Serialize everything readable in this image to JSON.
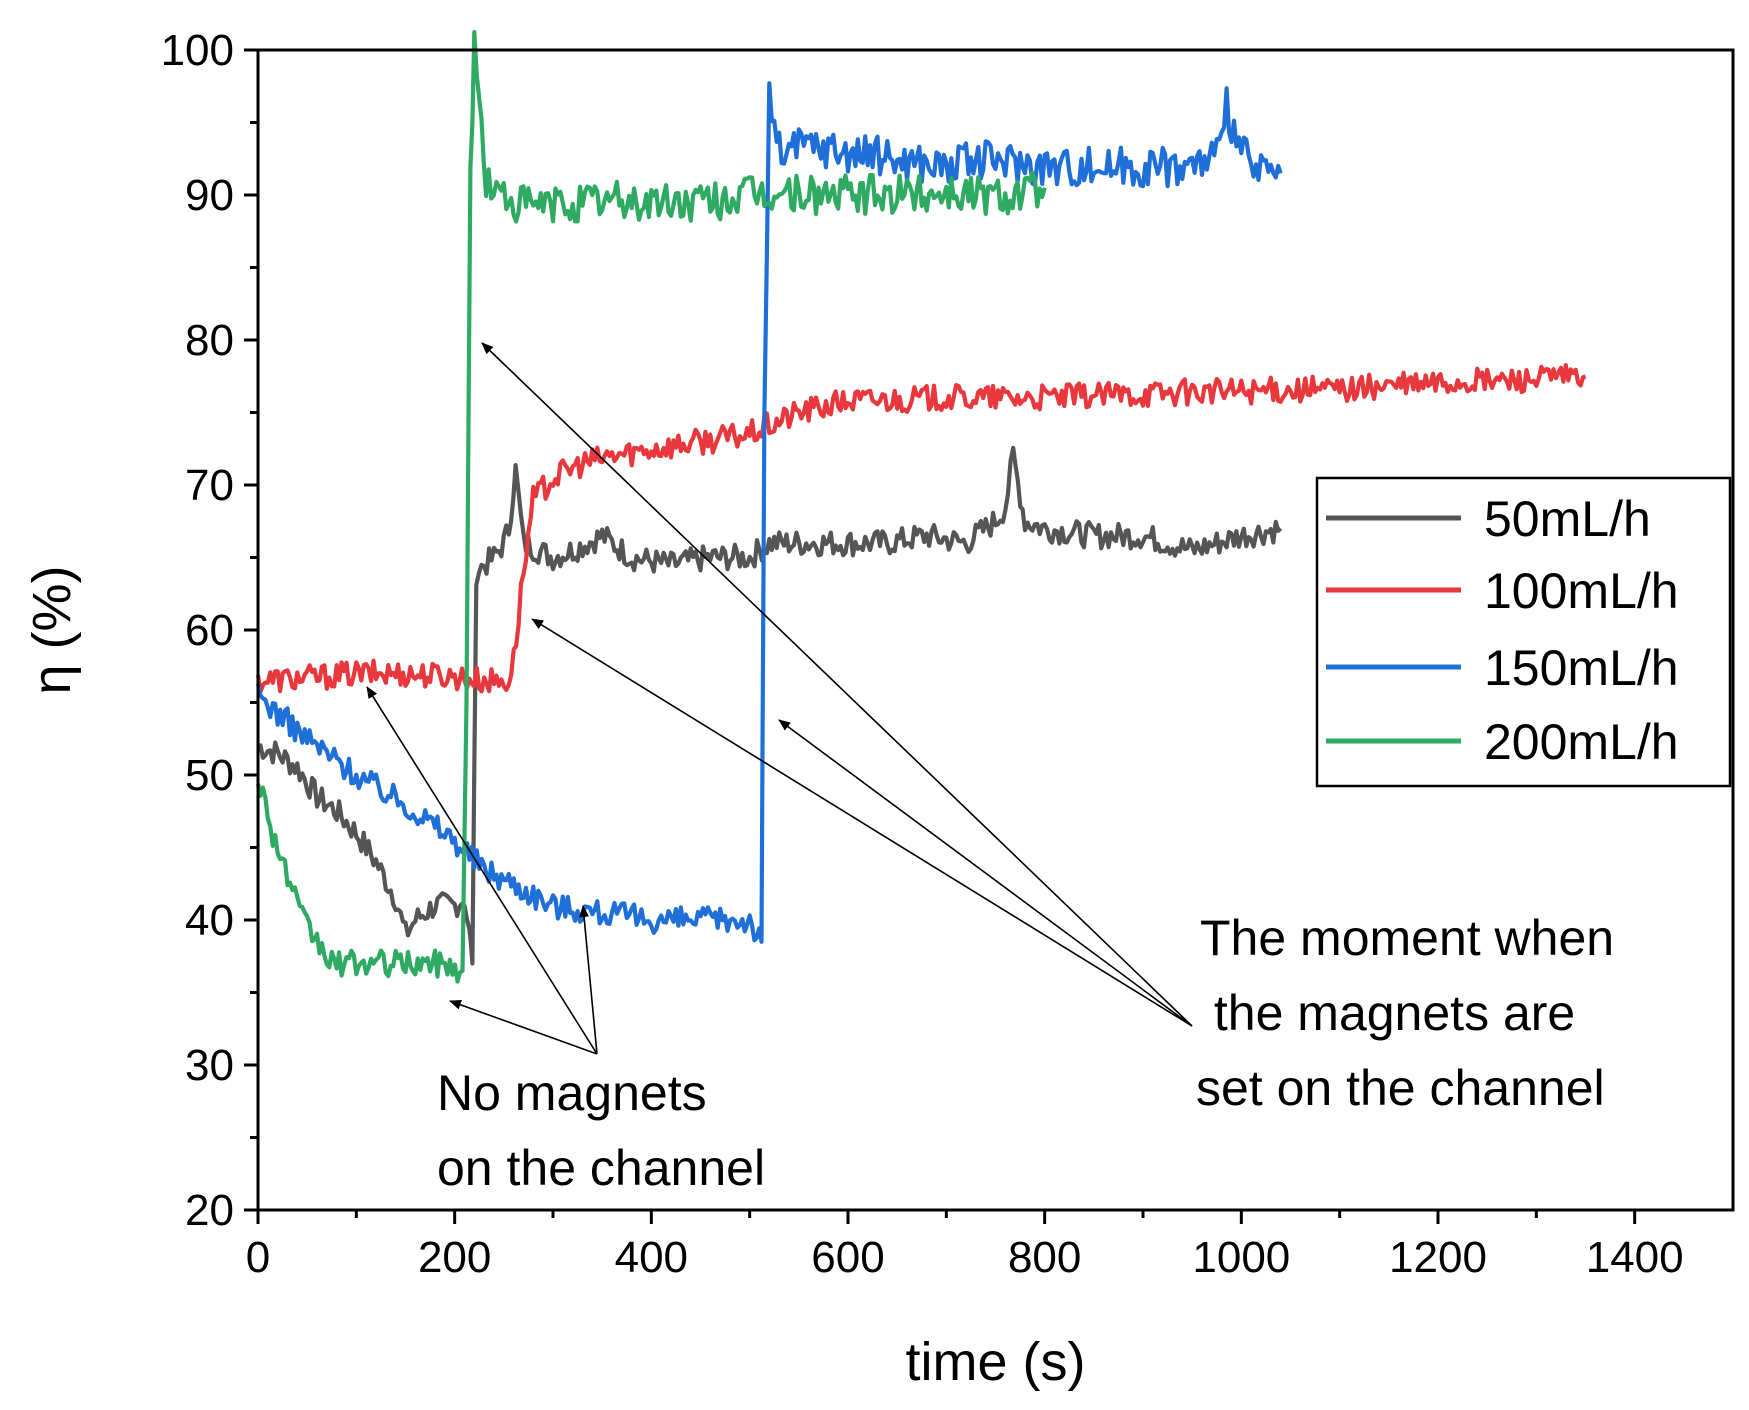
{
  "chart_data": {
    "type": "line",
    "title": "",
    "xlabel": "time (s)",
    "ylabel": "η (%)",
    "xlim": [
      0,
      1500
    ],
    "ylim": [
      20,
      100
    ],
    "xticks": [
      0,
      200,
      400,
      600,
      800,
      1000,
      1200,
      1400
    ],
    "yticks": [
      20,
      30,
      40,
      50,
      60,
      70,
      80,
      90,
      100
    ],
    "legend_position": "right",
    "series": [
      {
        "name": "50mL/h",
        "color": "#555555",
        "x": [
          0,
          20,
          40,
          60,
          80,
          100,
          120,
          140,
          150,
          160,
          180,
          200,
          210,
          215,
          218,
          222,
          230,
          240,
          250,
          255,
          262,
          270,
          285,
          300,
          320,
          350,
          380,
          420,
          460,
          500,
          520,
          560,
          600,
          640,
          680,
          720,
          750,
          760,
          768,
          780,
          800,
          850,
          900,
          950,
          1000,
          1040
        ],
        "y": [
          52,
          51.5,
          50.5,
          48.5,
          47.5,
          46,
          44,
          41.5,
          39,
          40,
          41,
          41,
          41.5,
          39,
          37,
          64,
          64.5,
          65,
          66,
          67,
          71,
          66,
          65.5,
          65,
          65.5,
          66.5,
          65,
          64.5,
          65,
          65,
          66,
          66,
          66,
          66,
          66.5,
          66,
          67.5,
          68.5,
          72,
          67.5,
          67,
          66.5,
          66.5,
          65.5,
          66.5,
          67
        ]
      },
      {
        "name": "100mL/h",
        "color": "#e8383d",
        "x": [
          0,
          50,
          100,
          150,
          200,
          230,
          255,
          260,
          270,
          280,
          300,
          330,
          360,
          400,
          450,
          500,
          550,
          600,
          700,
          800,
          900,
          1000,
          1100,
          1200,
          1300,
          1350
        ],
        "y": [
          56.5,
          56.7,
          57,
          57,
          56.8,
          56.5,
          56.5,
          58,
          64,
          69,
          70.5,
          71.5,
          72,
          72.5,
          73,
          73.5,
          75,
          75.8,
          76,
          76,
          76.3,
          76.5,
          76.6,
          77,
          77.3,
          77.5
        ]
      },
      {
        "name": "150mL/h",
        "color": "#1f6fd8",
        "x": [
          0,
          50,
          100,
          150,
          200,
          230,
          260,
          300,
          350,
          400,
          450,
          500,
          512,
          515,
          520,
          530,
          560,
          600,
          650,
          700,
          750,
          800,
          850,
          900,
          950,
          980,
          985,
          1000,
          1020,
          1040
        ],
        "y": [
          55.5,
          52.5,
          50,
          48,
          45.5,
          43.5,
          42.5,
          41,
          40.5,
          40,
          40,
          40,
          38.5,
          75,
          97,
          93,
          93.5,
          93,
          92.5,
          92,
          92.5,
          92,
          92,
          92,
          92,
          93,
          96,
          93,
          91.5,
          91.5
        ]
      },
      {
        "name": "200mL/h",
        "color": "#2eaa62",
        "x": [
          0,
          15,
          30,
          45,
          60,
          75,
          100,
          130,
          160,
          190,
          208,
          212,
          216,
          220,
          225,
          232,
          245,
          270,
          300,
          350,
          400,
          450,
          500,
          550,
          600,
          650,
          700,
          750,
          800
        ],
        "y": [
          50,
          46,
          43,
          40,
          38.5,
          37,
          37,
          37,
          37,
          37,
          36.5,
          55,
          92,
          100,
          96.5,
          91,
          90,
          89.3,
          89.3,
          89.6,
          89.5,
          89.5,
          90,
          90.1,
          90,
          90,
          90.3,
          90,
          90.5
        ]
      }
    ],
    "annotations": {
      "no_magnets": [
        "No magnets",
        "on the channel"
      ],
      "magnets_set": [
        "The moment when",
        " the magnets are",
        "set on the channel"
      ]
    }
  }
}
